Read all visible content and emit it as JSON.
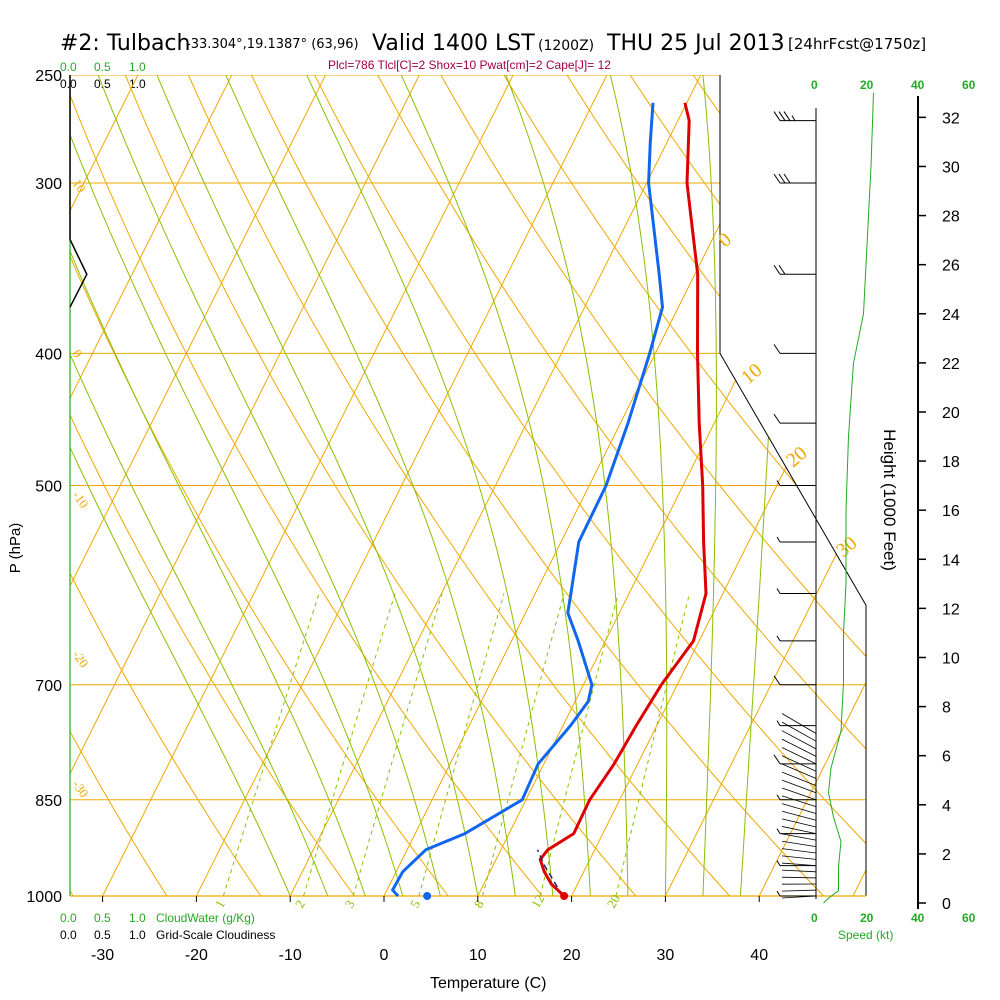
{
  "header": {
    "station": "#2: Tulbach",
    "coords": "-33.304°,19.1387° (63,96)",
    "valid": "Valid 1400 LST",
    "z": "(1200Z)",
    "date": "THU 25 Jul 2013",
    "fcst": "[24hrFcst@1750z]",
    "params": "Plcl=786 Tlcl[C]=2 Shox=10 Pwat[cm]=2 Cape[J]= 12"
  },
  "colors": {
    "temperature": "#dd0000",
    "dewpoint": "#1166ee",
    "isotherm_isobar": "#f0a800",
    "dry_adiabat": "#f0a800",
    "moist_adiabat": "#88c000",
    "mixing_ratio": "#88c000",
    "cloud": "#22aa22"
  },
  "legend": {
    "cloudwater_label": "CloudWater (g/Kg)",
    "cloudiness_label": "Grid-Scale Cloudiness",
    "scale_values": [
      "0.0",
      "0.5",
      "1.0"
    ],
    "speed_label": "Speed (kt)",
    "speed_ticks": [
      "0",
      "20",
      "40",
      "60"
    ]
  },
  "chart_data": {
    "type": "line",
    "subtype": "skew-T log-P sounding",
    "xlabel": "Temperature (C)",
    "ylabel": "P (hPa)",
    "y2label": "Height (1000 Feet)",
    "x_ticks": [
      -30,
      -20,
      -10,
      0,
      10,
      20,
      30,
      40
    ],
    "pressure_ticks": [
      250,
      300,
      400,
      500,
      700,
      850,
      1000
    ],
    "height_ticks": [
      0,
      2,
      4,
      6,
      8,
      10,
      12,
      14,
      16,
      18,
      20,
      22,
      24,
      26,
      28,
      30,
      32
    ],
    "isotherm_labels": [
      "10",
      "0",
      "-10",
      "-20",
      "-30"
    ],
    "adiabat_labels": [
      "0",
      "10",
      "20",
      "30"
    ],
    "mixing_ratio_labels": [
      "1",
      "2",
      "3",
      "5",
      "8",
      "12",
      "20"
    ],
    "series": [
      {
        "name": "Temperature",
        "points": [
          [
            1000,
            19.2
          ],
          [
            980,
            17.2
          ],
          [
            960,
            15.8
          ],
          [
            940,
            14.7
          ],
          [
            925,
            15
          ],
          [
            900,
            16.9
          ],
          [
            850,
            16.8
          ],
          [
            800,
            17.5
          ],
          [
            750,
            17.8
          ],
          [
            700,
            18.3
          ],
          [
            650,
            19.4
          ],
          [
            600,
            18.2
          ],
          [
            550,
            15.2
          ],
          [
            500,
            12.1
          ],
          [
            450,
            8.4
          ],
          [
            400,
            4.5
          ],
          [
            350,
            0.3
          ],
          [
            300,
            -5.7
          ],
          [
            270,
            -8.8
          ],
          [
            262,
            -10.2
          ]
        ]
      },
      {
        "name": "Dewpoint",
        "points": [
          [
            1000,
            1.5
          ],
          [
            990,
            0.6
          ],
          [
            960,
            0.7
          ],
          [
            925,
            2
          ],
          [
            900,
            5.3
          ],
          [
            850,
            9.6
          ],
          [
            800,
            9.4
          ],
          [
            750,
            10.8
          ],
          [
            720,
            11.4
          ],
          [
            700,
            10.9
          ],
          [
            650,
            7.1
          ],
          [
            620,
            4.5
          ],
          [
            600,
            3.8
          ],
          [
            550,
            1.9
          ],
          [
            500,
            1.8
          ],
          [
            450,
            0.8
          ],
          [
            400,
            -0.6
          ],
          [
            370,
            -1.7
          ],
          [
            350,
            -3.8
          ],
          [
            300,
            -9.8
          ],
          [
            280,
            -11.8
          ],
          [
            262,
            -13.6
          ]
        ]
      },
      {
        "name": "Parcel",
        "points": [
          [
            985,
            18
          ],
          [
            950,
            15.5
          ],
          [
            925,
            13.9
          ]
        ]
      },
      {
        "name": "Surface",
        "points": [
          [
            1000,
            19.2
          ],
          [
            1000,
            4.6
          ]
        ]
      }
    ],
    "wind_barbs": [
      {
        "p": 1000,
        "dir": 15,
        "spd": 5
      },
      {
        "p": 950,
        "dir": 15,
        "spd": 5
      },
      {
        "p": 900,
        "dir": 20,
        "spd": 5
      },
      {
        "p": 850,
        "dir": 30,
        "spd": 5
      },
      {
        "p": 800,
        "dir": 75,
        "spd": 10
      },
      {
        "p": 750,
        "dir": 80,
        "spd": 5
      },
      {
        "p": 700,
        "dir": 60,
        "spd": 10
      },
      {
        "p": 650,
        "dir": 70,
        "spd": 5
      },
      {
        "p": 600,
        "dir": 70,
        "spd": 5
      },
      {
        "p": 550,
        "dir": 80,
        "spd": 5
      },
      {
        "p": 500,
        "dir": 80,
        "spd": 5
      },
      {
        "p": 450,
        "dir": 90,
        "spd": 10
      },
      {
        "p": 400,
        "dir": 90,
        "spd": 10
      },
      {
        "p": 350,
        "dir": 70,
        "spd": 20
      },
      {
        "p": 300,
        "dir": 70,
        "spd": 30
      },
      {
        "p": 270,
        "dir": 80,
        "spd": 35
      }
    ],
    "cloudiness_series": [
      [
        250,
        0
      ],
      [
        330,
        0
      ],
      [
        350,
        0.4
      ],
      [
        370,
        0
      ]
    ],
    "wind_speed_series": [
      [
        0,
        3
      ],
      [
        0.2,
        5
      ],
      [
        0.5,
        9
      ],
      [
        1.5,
        9
      ],
      [
        2.5,
        10
      ],
      [
        3.5,
        7
      ],
      [
        4.5,
        5
      ],
      [
        5.5,
        6
      ],
      [
        7,
        10
      ],
      [
        9,
        11
      ],
      [
        11,
        11
      ],
      [
        13,
        12
      ],
      [
        16,
        12
      ],
      [
        19,
        13
      ],
      [
        22,
        15
      ],
      [
        24,
        19
      ],
      [
        26,
        20
      ],
      [
        28,
        21
      ],
      [
        30,
        22
      ],
      [
        33,
        23
      ]
    ]
  }
}
